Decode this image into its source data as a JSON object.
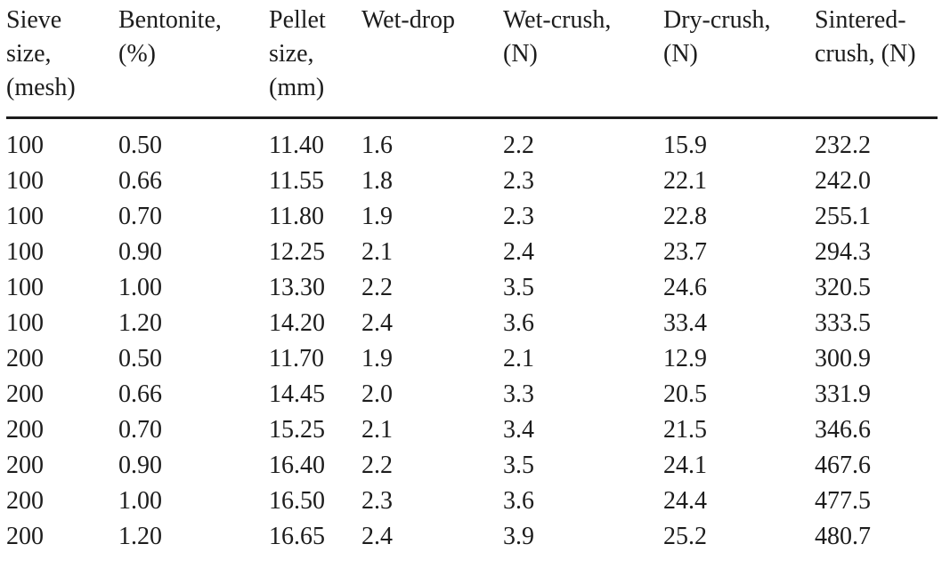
{
  "colors": {
    "background": "#ffffff",
    "text": "#1c1c1c",
    "header_rule": "#1c1c1c"
  },
  "table": {
    "columns": [
      {
        "key": "sieve_size",
        "label": "Sieve\nsize,\n(mesh)"
      },
      {
        "key": "bentonite",
        "label": "Bentonite,\n(%)"
      },
      {
        "key": "pellet_size",
        "label": "Pellet\nsize,\n(mm)"
      },
      {
        "key": "wet_drop",
        "label": "Wet-drop"
      },
      {
        "key": "wet_crush",
        "label": "Wet-crush,\n(N)"
      },
      {
        "key": "dry_crush",
        "label": "Dry-crush,\n(N)"
      },
      {
        "key": "sintered_crush",
        "label": "Sintered-\ncrush, (N)"
      }
    ],
    "rows": [
      [
        "100",
        "0.50",
        "11.40",
        "1.6",
        "2.2",
        "15.9",
        "232.2"
      ],
      [
        "100",
        "0.66",
        "11.55",
        "1.8",
        "2.3",
        "22.1",
        "242.0"
      ],
      [
        "100",
        "0.70",
        "11.80",
        "1.9",
        "2.3",
        "22.8",
        "255.1"
      ],
      [
        "100",
        "0.90",
        "12.25",
        "2.1",
        "2.4",
        "23.7",
        "294.3"
      ],
      [
        "100",
        "1.00",
        "13.30",
        "2.2",
        "3.5",
        "24.6",
        "320.5"
      ],
      [
        "100",
        "1.20",
        "14.20",
        "2.4",
        "3.6",
        "33.4",
        "333.5"
      ],
      [
        "200",
        "0.50",
        "11.70",
        "1.9",
        "2.1",
        "12.9",
        "300.9"
      ],
      [
        "200",
        "0.66",
        "14.45",
        "2.0",
        "3.3",
        "20.5",
        "331.9"
      ],
      [
        "200",
        "0.70",
        "15.25",
        "2.1",
        "3.4",
        "21.5",
        "346.6"
      ],
      [
        "200",
        "0.90",
        "16.40",
        "2.2",
        "3.5",
        "24.1",
        "467.6"
      ],
      [
        "200",
        "1.00",
        "16.50",
        "2.3",
        "3.6",
        "24.4",
        "477.5"
      ],
      [
        "200",
        "1.20",
        "16.65",
        "2.4",
        "3.9",
        "25.2",
        "480.7"
      ]
    ]
  }
}
